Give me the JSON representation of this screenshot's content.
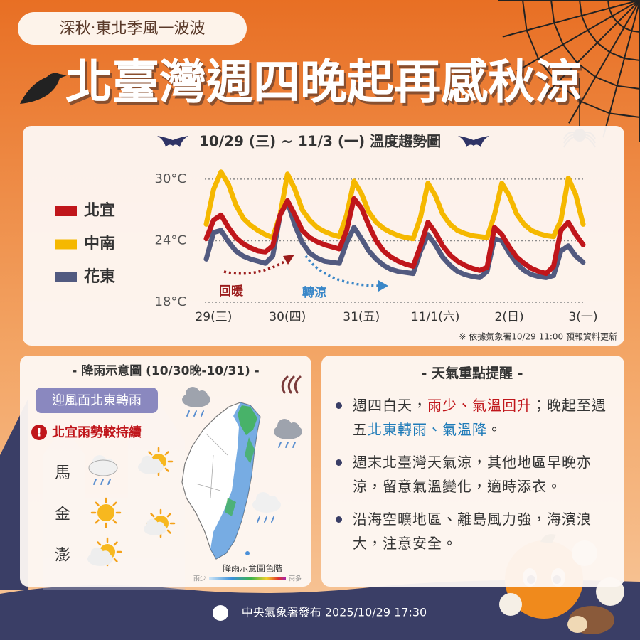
{
  "header": {
    "tag": "深秋‧東北季風一波波",
    "title": "北臺灣週四晚起再感秋涼"
  },
  "chart_data": {
    "type": "line",
    "title": "10/29 (三) ~ 11/3 (一) 溫度趨勢圖",
    "categories": [
      null,
      "29(三)",
      null,
      null,
      null,
      null,
      null,
      null,
      null,
      null,
      null,
      "30(四)",
      null,
      null,
      null,
      null,
      null,
      null,
      null,
      null,
      null,
      "31(五)",
      null,
      null,
      null,
      null,
      null,
      null,
      null,
      null,
      null,
      "11/1(六)",
      null,
      null,
      null,
      null,
      null,
      null,
      null,
      null,
      null,
      "2(日)",
      null,
      null,
      null,
      null,
      null,
      null,
      null,
      null,
      null,
      "3(一)"
    ],
    "series": [
      {
        "name": "北宜",
        "color": "#c0161b",
        "values": [
          24.2,
          26.0,
          26.5,
          25.3,
          24.3,
          23.7,
          23.3,
          23.0,
          22.9,
          23.5,
          26.5,
          27.9,
          26.5,
          25.0,
          24.3,
          23.9,
          23.6,
          23.4,
          23.2,
          25.0,
          28.1,
          27.2,
          25.5,
          24.0,
          23.0,
          22.4,
          22.0,
          21.7,
          21.5,
          23.5,
          25.8,
          24.8,
          23.5,
          22.6,
          22.0,
          21.6,
          21.3,
          21.1,
          21.4,
          25.3,
          24.6,
          23.4,
          22.4,
          21.8,
          21.3,
          21.0,
          20.8,
          21.5,
          25.0,
          25.8,
          24.6,
          23.6
        ]
      },
      {
        "name": "中南",
        "color": "#f5b800",
        "values": [
          25.6,
          29.0,
          30.7,
          29.5,
          27.5,
          26.2,
          25.5,
          25.0,
          24.6,
          24.3,
          26.5,
          30.5,
          29.0,
          27.0,
          26.0,
          25.3,
          24.9,
          24.6,
          24.4,
          26.5,
          29.8,
          28.6,
          26.8,
          25.8,
          25.2,
          24.8,
          24.5,
          24.3,
          24.2,
          26.3,
          29.6,
          28.4,
          26.6,
          25.6,
          25.0,
          24.7,
          24.5,
          24.4,
          24.3,
          26.5,
          29.6,
          28.4,
          26.6,
          25.6,
          25.0,
          24.7,
          24.5,
          24.4,
          26.0,
          30.1,
          28.5,
          25.6
        ]
      },
      {
        "name": "花東",
        "color": "#525a80",
        "values": [
          22.2,
          24.8,
          25.0,
          23.9,
          23.0,
          22.5,
          22.2,
          22.0,
          21.8,
          22.5,
          26.5,
          27.8,
          25.5,
          23.8,
          22.8,
          22.3,
          22.0,
          21.9,
          21.8,
          23.8,
          25.3,
          24.2,
          23.0,
          22.2,
          21.6,
          21.2,
          21.0,
          20.9,
          20.8,
          23.0,
          24.6,
          23.6,
          22.4,
          21.6,
          21.0,
          20.7,
          20.5,
          20.4,
          21.0,
          24.2,
          24.0,
          22.8,
          21.8,
          21.1,
          20.7,
          20.5,
          20.4,
          20.6,
          23.0,
          23.5,
          22.5,
          21.9
        ]
      }
    ],
    "ylim": [
      18,
      31
    ],
    "yticks": [
      {
        "value": 30,
        "label": "30°C"
      },
      {
        "value": 24,
        "label": "24°C"
      },
      {
        "value": 18,
        "label": "18°C"
      }
    ],
    "grid": true,
    "legend": "left",
    "annotations": [
      {
        "text": "回暖",
        "color": "#9b1c1c"
      },
      {
        "text": "轉涼",
        "color": "#3a87c8"
      }
    ],
    "note": "※ 依據氣象署10/29 11:00 預報資料更新"
  },
  "rain_map": {
    "title": "- 降雨示意圖 (10/30晚-10/31) -",
    "badge": "迎風面北東轉雨",
    "alert_icon": "!",
    "alert": "北宜雨勢較持續",
    "islands": [
      "馬",
      "金",
      "澎"
    ],
    "scale_title": "降雨示意圖色階",
    "scale_min": "雨少",
    "scale_max": "雨多"
  },
  "tips": {
    "title": "- 天氣重點提醒 -",
    "items": [
      [
        "週四白天，",
        "雨少、氣溫回升",
        "；晚起至週五",
        "北東轉雨、氣溫降",
        "。"
      ],
      [
        "週末北臺灣天氣涼，其他地區早晚亦涼，留意氣溫變化，適時添衣。"
      ],
      [
        "沿海空曠地區、離島風力強，海濱浪大，注意安全。"
      ]
    ]
  },
  "footer": "中央氣象署發布 2025/10/29 17:30"
}
